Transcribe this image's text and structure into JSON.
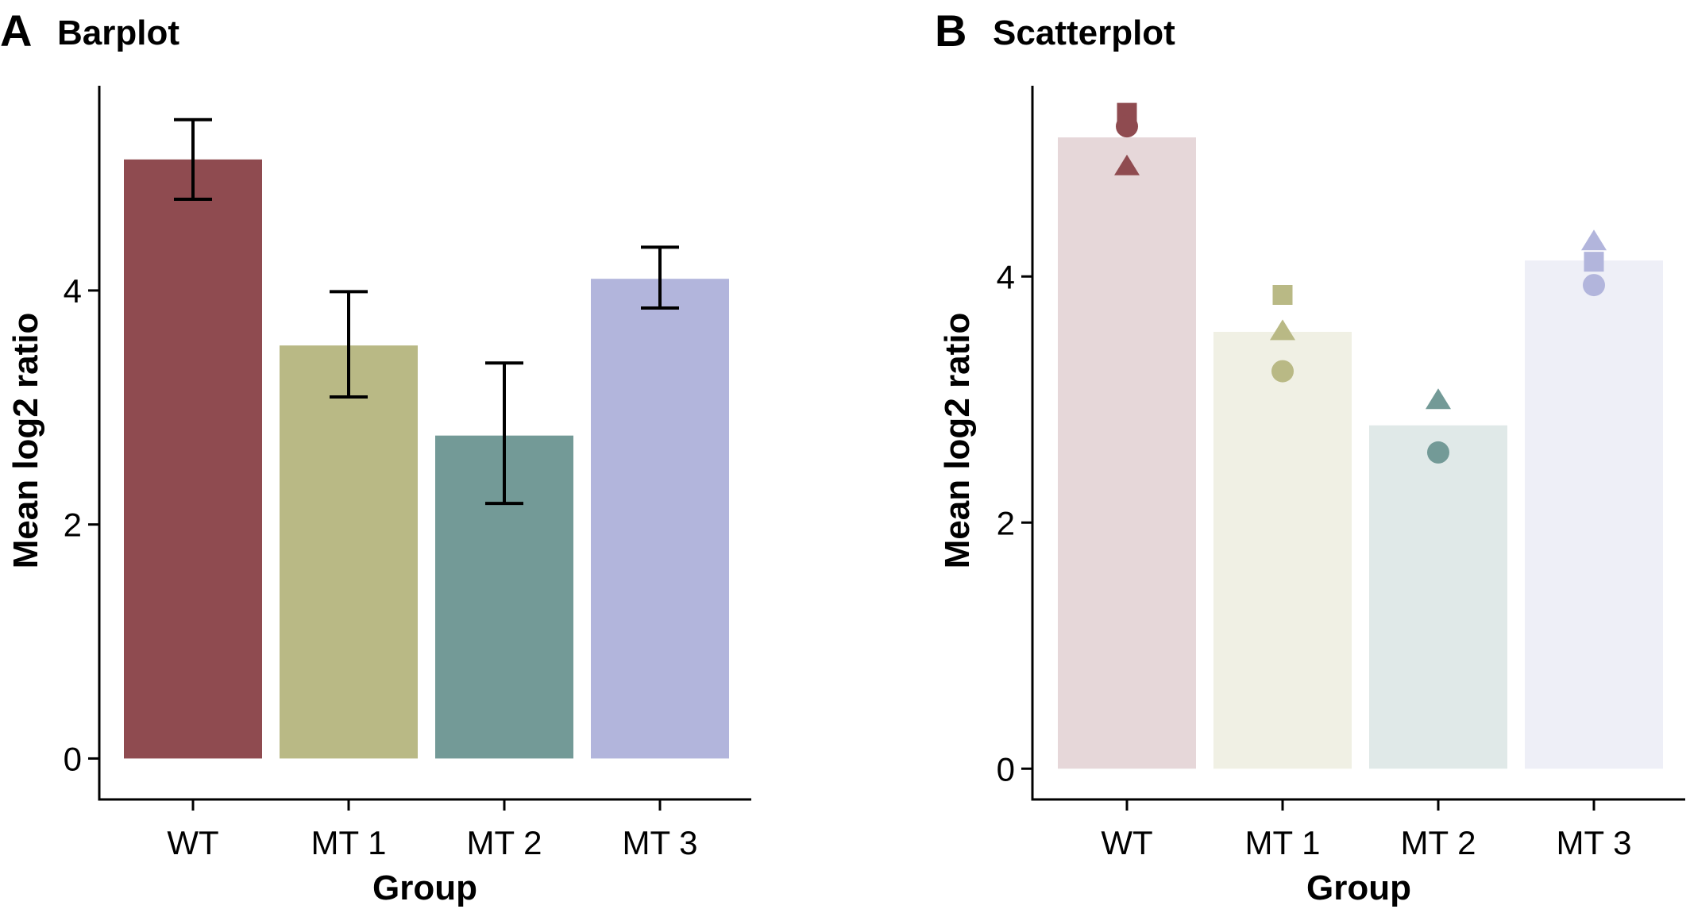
{
  "colors": {
    "WT": "#8f4b50",
    "MT 1": "#b9b985",
    "MT 2": "#739a97",
    "MT 3": "#b2b5dc"
  },
  "chart_data": [
    {
      "panel": "A",
      "title": "Barplot",
      "type": "bar",
      "xlabel": "Group",
      "ylabel": "Mean log2 ratio",
      "categories": [
        "WT",
        "MT 1",
        "MT 2",
        "MT 3"
      ],
      "values": [
        5.12,
        3.53,
        2.76,
        4.1
      ],
      "error_low": [
        4.78,
        3.09,
        2.18,
        3.85
      ],
      "error_high": [
        5.46,
        3.99,
        3.38,
        4.37
      ],
      "ylim": [
        -0.35,
        5.75
      ],
      "yticks": [
        0,
        2,
        4
      ],
      "ytick_labels": [
        "0",
        "2",
        "4"
      ],
      "grid": false
    },
    {
      "panel": "B",
      "title": "Scatterplot",
      "type": "scatter",
      "xlabel": "Group",
      "ylabel": "Mean log2 ratio",
      "categories": [
        "WT",
        "MT 1",
        "MT 2",
        "MT 3"
      ],
      "bar_values": [
        5.13,
        3.55,
        2.79,
        4.13
      ],
      "points": [
        {
          "category": "WT",
          "shape": "square",
          "y": 5.33
        },
        {
          "category": "WT",
          "shape": "circle",
          "y": 5.22
        },
        {
          "category": "WT",
          "shape": "triangle",
          "y": 4.89
        },
        {
          "category": "MT 1",
          "shape": "square",
          "y": 3.85
        },
        {
          "category": "MT 1",
          "shape": "triangle",
          "y": 3.55
        },
        {
          "category": "MT 1",
          "shape": "circle",
          "y": 3.23
        },
        {
          "category": "MT 2",
          "shape": "triangle",
          "y": 2.99
        },
        {
          "category": "MT 2",
          "shape": "circle",
          "y": 2.57
        },
        {
          "category": "MT 3",
          "shape": "triangle",
          "y": 4.28
        },
        {
          "category": "MT 3",
          "shape": "square",
          "y": 4.12
        },
        {
          "category": "MT 3",
          "shape": "circle",
          "y": 3.93
        }
      ],
      "ylim": [
        -0.25,
        5.55
      ],
      "yticks": [
        0,
        2,
        4
      ],
      "ytick_labels": [
        "0",
        "2",
        "4"
      ],
      "grid": false
    }
  ]
}
